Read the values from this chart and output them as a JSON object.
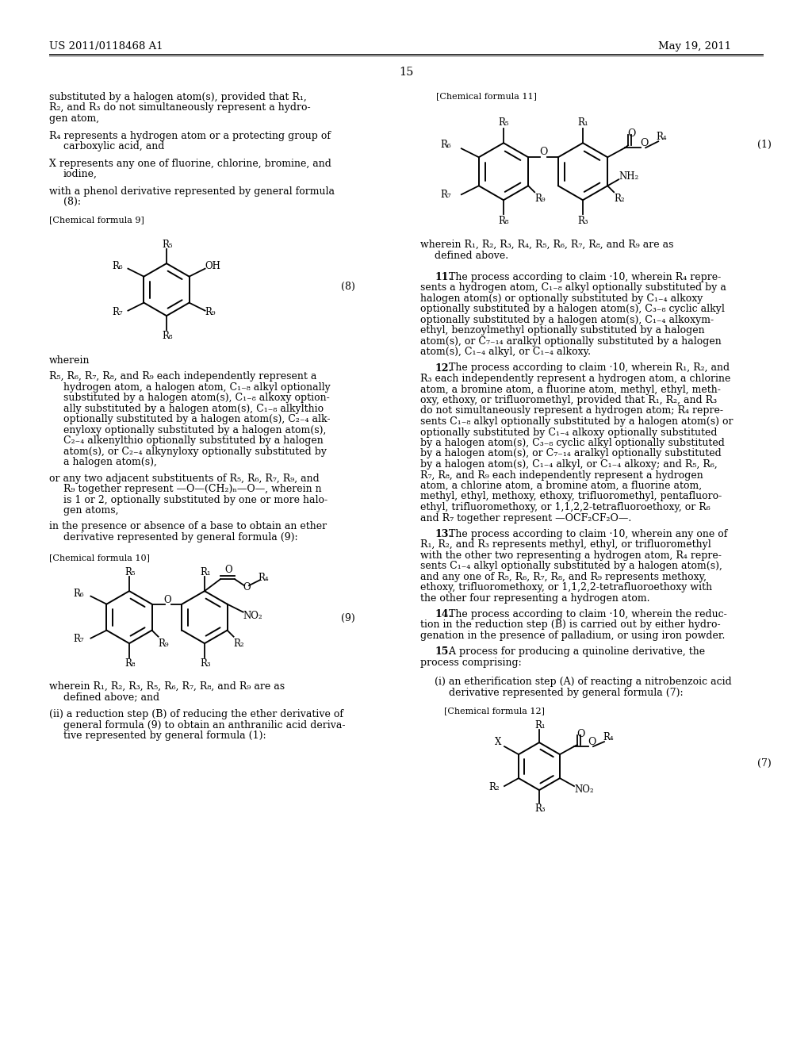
{
  "page_number": "15",
  "header_left": "US 2011/0118468 A1",
  "header_right": "May 19, 2011",
  "background_color": "#ffffff",
  "text_color": "#000000"
}
